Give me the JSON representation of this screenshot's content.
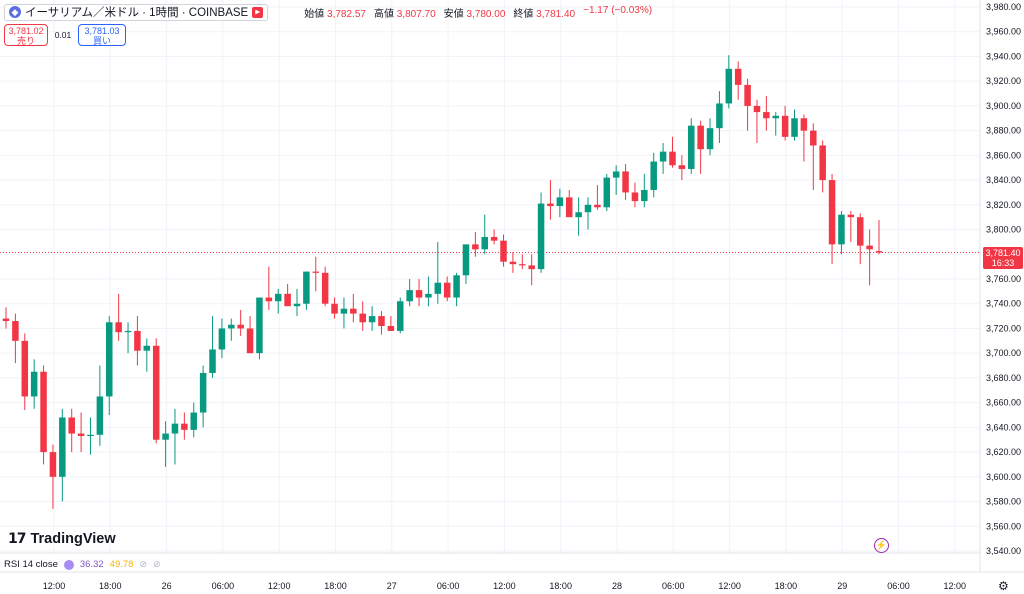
{
  "header": {
    "symbol_title": "イーサリアム／米ドル · 1時間 · COINBASE",
    "ohlc": [
      {
        "label": "始値",
        "value": "3,782.57"
      },
      {
        "label": "高値",
        "value": "3,807.70"
      },
      {
        "label": "安値",
        "value": "3,780.00"
      },
      {
        "label": "終値",
        "value": "3,781.40"
      },
      {
        "label": "",
        "value": "−1.17 (−0.03%)"
      }
    ]
  },
  "trade": {
    "sell_price": "3,781.02",
    "sell_label": "売り",
    "spread": "0.01",
    "buy_price": "3,781.03",
    "buy_label": "買い"
  },
  "last_price": {
    "price": "3,781.40",
    "countdown": "16:33"
  },
  "indicator": {
    "name": "RSI 14 close",
    "value1": "36.32",
    "value2": "49.78"
  },
  "logo": {
    "mark": "17",
    "text": "TradingView"
  },
  "colors": {
    "up": "#089981",
    "down": "#f23645",
    "grid": "#f0f3fa",
    "axis_text": "#131722",
    "price_line": "#f23645"
  },
  "chart_data": {
    "type": "candlestick",
    "interval": "1時間",
    "ylim": [
      3540,
      3980
    ],
    "y_ticks": [
      "3,540.00",
      "3,560.00",
      "3,580.00",
      "3,600.00",
      "3,620.00",
      "3,640.00",
      "3,660.00",
      "3,680.00",
      "3,700.00",
      "3,720.00",
      "3,740.00",
      "3,760.00",
      "3,780.00",
      "3,800.00",
      "3,820.00",
      "3,840.00",
      "3,860.00",
      "3,880.00",
      "3,900.00",
      "3,920.00",
      "3,940.00",
      "3,960.00",
      "3,980.00"
    ],
    "x_ticks": [
      "12:00",
      "18:00",
      "26",
      "06:00",
      "12:00",
      "18:00",
      "27",
      "06:00",
      "12:00",
      "18:00",
      "28",
      "06:00",
      "12:00",
      "18:00",
      "29",
      "06:00",
      "12:00"
    ],
    "candles": [
      [
        3728,
        3737,
        3720,
        3726
      ],
      [
        3726,
        3732,
        3692,
        3710
      ],
      [
        3710,
        3716,
        3654,
        3665
      ],
      [
        3665,
        3695,
        3655,
        3685
      ],
      [
        3685,
        3690,
        3610,
        3620
      ],
      [
        3620,
        3626,
        3574,
        3600
      ],
      [
        3600,
        3655,
        3580,
        3648
      ],
      [
        3648,
        3655,
        3620,
        3635
      ],
      [
        3635,
        3652,
        3620,
        3633
      ],
      [
        3633,
        3648,
        3618,
        3634
      ],
      [
        3634,
        3690,
        3625,
        3665
      ],
      [
        3665,
        3730,
        3650,
        3725
      ],
      [
        3725,
        3748,
        3710,
        3717
      ],
      [
        3717,
        3725,
        3700,
        3718
      ],
      [
        3718,
        3730,
        3690,
        3702
      ],
      [
        3702,
        3712,
        3685,
        3706
      ],
      [
        3706,
        3712,
        3627,
        3630
      ],
      [
        3630,
        3645,
        3608,
        3635
      ],
      [
        3635,
        3655,
        3610,
        3643
      ],
      [
        3643,
        3652,
        3630,
        3638
      ],
      [
        3638,
        3660,
        3632,
        3652
      ],
      [
        3652,
        3690,
        3640,
        3684
      ],
      [
        3684,
        3730,
        3680,
        3703
      ],
      [
        3703,
        3728,
        3696,
        3720
      ],
      [
        3720,
        3728,
        3710,
        3723
      ],
      [
        3723,
        3735,
        3714,
        3720
      ],
      [
        3720,
        3730,
        3700,
        3700
      ],
      [
        3700,
        3745,
        3695,
        3745
      ],
      [
        3745,
        3770,
        3735,
        3742
      ],
      [
        3742,
        3752,
        3732,
        3748
      ],
      [
        3748,
        3756,
        3740,
        3738
      ],
      [
        3738,
        3752,
        3730,
        3740
      ],
      [
        3740,
        3765,
        3735,
        3766
      ],
      [
        3766,
        3778,
        3750,
        3765
      ],
      [
        3765,
        3770,
        3738,
        3740
      ],
      [
        3740,
        3745,
        3728,
        3732
      ],
      [
        3732,
        3745,
        3720,
        3736
      ],
      [
        3736,
        3748,
        3725,
        3732
      ],
      [
        3732,
        3742,
        3718,
        3725
      ],
      [
        3725,
        3738,
        3718,
        3730
      ],
      [
        3730,
        3734,
        3715,
        3722
      ],
      [
        3722,
        3730,
        3718,
        3718
      ],
      [
        3718,
        3745,
        3716,
        3742
      ],
      [
        3742,
        3760,
        3738,
        3751
      ],
      [
        3751,
        3760,
        3738,
        3745
      ],
      [
        3745,
        3762,
        3738,
        3748
      ],
      [
        3748,
        3790,
        3740,
        3757
      ],
      [
        3757,
        3762,
        3742,
        3745
      ],
      [
        3745,
        3765,
        3738,
        3763
      ],
      [
        3763,
        3788,
        3756,
        3788
      ],
      [
        3788,
        3798,
        3778,
        3784
      ],
      [
        3784,
        3812,
        3780,
        3794
      ],
      [
        3794,
        3800,
        3788,
        3791
      ],
      [
        3791,
        3796,
        3770,
        3774
      ],
      [
        3774,
        3782,
        3765,
        3772
      ],
      [
        3772,
        3780,
        3768,
        3771
      ],
      [
        3771,
        3780,
        3755,
        3768
      ],
      [
        3768,
        3830,
        3765,
        3821
      ],
      [
        3821,
        3840,
        3808,
        3819
      ],
      [
        3819,
        3833,
        3810,
        3826
      ],
      [
        3826,
        3832,
        3812,
        3810
      ],
      [
        3810,
        3826,
        3795,
        3814
      ],
      [
        3814,
        3826,
        3800,
        3820
      ],
      [
        3820,
        3836,
        3816,
        3818
      ],
      [
        3818,
        3845,
        3815,
        3842
      ],
      [
        3842,
        3852,
        3828,
        3847
      ],
      [
        3847,
        3853,
        3824,
        3830
      ],
      [
        3830,
        3838,
        3818,
        3823
      ],
      [
        3823,
        3845,
        3818,
        3832
      ],
      [
        3832,
        3862,
        3826,
        3855
      ],
      [
        3855,
        3870,
        3845,
        3863
      ],
      [
        3863,
        3875,
        3850,
        3852
      ],
      [
        3852,
        3860,
        3840,
        3849
      ],
      [
        3849,
        3890,
        3845,
        3884
      ],
      [
        3884,
        3888,
        3845,
        3865
      ],
      [
        3865,
        3890,
        3860,
        3882
      ],
      [
        3882,
        3912,
        3870,
        3902
      ],
      [
        3902,
        3941,
        3898,
        3930
      ],
      [
        3930,
        3936,
        3905,
        3917
      ],
      [
        3917,
        3922,
        3880,
        3900
      ],
      [
        3900,
        3905,
        3870,
        3895
      ],
      [
        3895,
        3908,
        3880,
        3890
      ],
      [
        3890,
        3895,
        3876,
        3892
      ],
      [
        3892,
        3900,
        3872,
        3875
      ],
      [
        3875,
        3897,
        3872,
        3890
      ],
      [
        3890,
        3893,
        3855,
        3880
      ],
      [
        3880,
        3886,
        3832,
        3868
      ],
      [
        3868,
        3872,
        3830,
        3840
      ],
      [
        3840,
        3845,
        3772,
        3788
      ],
      [
        3788,
        3815,
        3780,
        3812
      ],
      [
        3812,
        3815,
        3790,
        3810
      ],
      [
        3810,
        3813,
        3772,
        3787
      ],
      [
        3787,
        3800,
        3755,
        3784
      ],
      [
        3782.57,
        3807.7,
        3780,
        3781.4
      ]
    ]
  }
}
